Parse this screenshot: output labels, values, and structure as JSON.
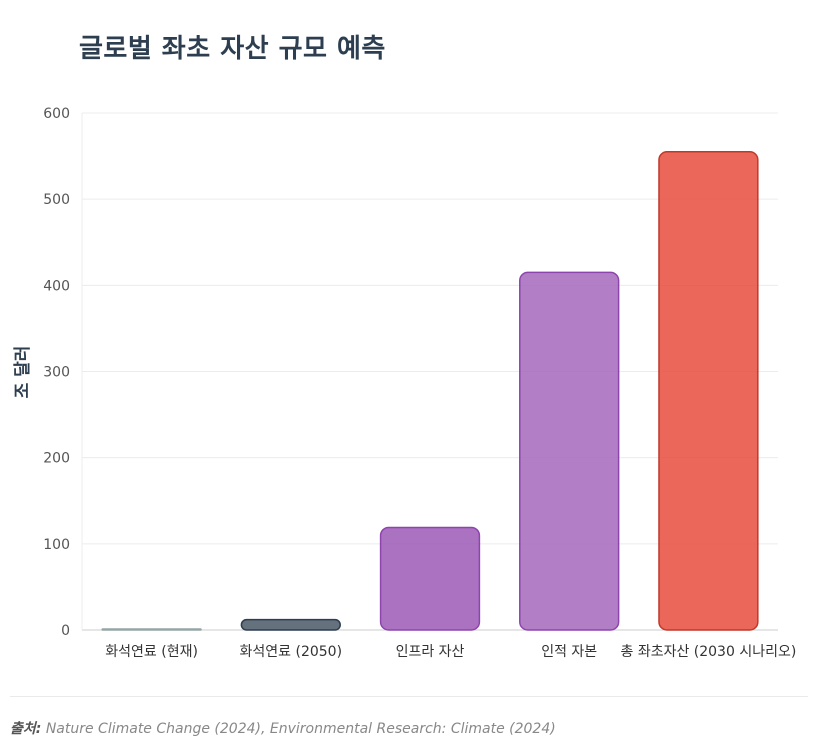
{
  "chart_data": {
    "type": "bar",
    "title": "글로벌 좌초 자산 규모 예측",
    "ylabel": "조 달러",
    "xlabel": "",
    "ylim": [
      0,
      600
    ],
    "yticks": [
      0,
      100,
      200,
      300,
      400,
      500,
      600
    ],
    "grid": true,
    "categories": [
      "화석연료 (현재)",
      "화석연료 (2050)",
      "인프라 자산",
      "인적 자본",
      "총 좌초자산 (2030 시나리오)"
    ],
    "values": [
      1,
      12,
      119,
      415,
      555
    ],
    "colors": [
      "#bdc3c7",
      "#4a5866",
      "#9b59b6",
      "#a569bd",
      "#e74c3c"
    ],
    "border_colors": [
      "#95a5a6",
      "#2c3e50",
      "#8e44ad",
      "#8e44ad",
      "#c0392b"
    ]
  },
  "source": {
    "label": "출처:",
    "text": "Nature Climate Change (2024), Environmental Research: Climate (2024)"
  }
}
